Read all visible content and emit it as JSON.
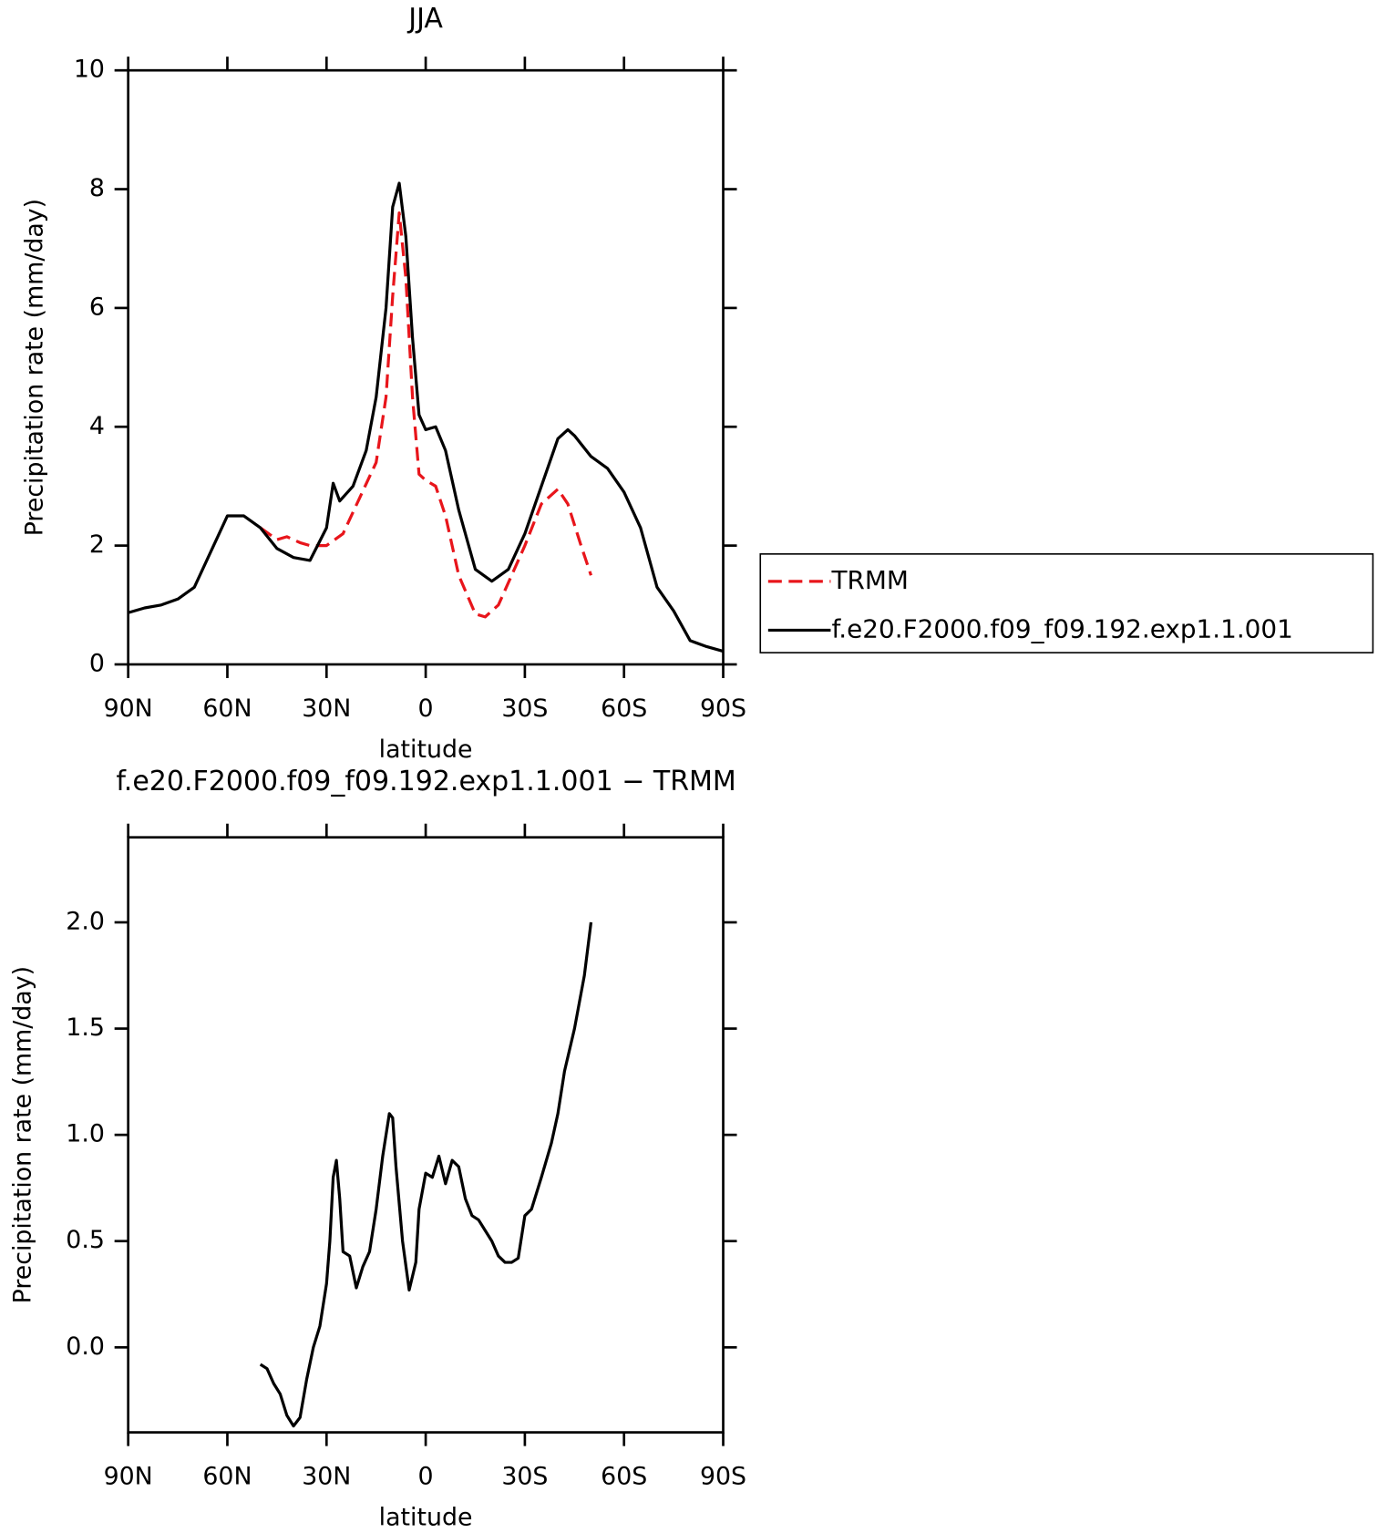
{
  "chart_data": [
    {
      "type": "line",
      "title": "JJA",
      "xlabel": "latitude",
      "ylabel": "Precipitation rate (mm/day)",
      "xlim": [
        90,
        -90
      ],
      "xticks": [
        {
          "value": 90,
          "label": "90N"
        },
        {
          "value": 60,
          "label": "60N"
        },
        {
          "value": 30,
          "label": "30N"
        },
        0,
        {
          "value": -30,
          "label": "30S"
        },
        {
          "value": -60,
          "label": "60S"
        },
        {
          "value": -90,
          "label": "90S"
        }
      ],
      "ylim": [
        0,
        10
      ],
      "yticks": [
        0,
        2,
        4,
        6,
        8,
        10
      ],
      "legend": "right",
      "series": [
        {
          "name": "TRMM",
          "color": "#e8151b",
          "dash": true,
          "x": [
            50,
            45,
            42,
            38,
            35,
            30,
            25,
            20,
            15,
            12,
            10,
            8,
            6,
            4,
            2,
            0,
            -3,
            -6,
            -10,
            -15,
            -18,
            -22,
            -26,
            -30,
            -35,
            -40,
            -43,
            -47,
            -50
          ],
          "values": [
            2.3,
            2.1,
            2.15,
            2.05,
            2.0,
            2.0,
            2.2,
            2.8,
            3.4,
            4.5,
            6.2,
            7.6,
            6.5,
            4.5,
            3.2,
            3.1,
            3.0,
            2.5,
            1.5,
            0.85,
            0.8,
            1.0,
            1.5,
            2.0,
            2.7,
            2.95,
            2.7,
            2.0,
            1.5
          ]
        },
        {
          "name": "f.e20.F2000.f09_f09.192.exp1.1.001",
          "color": "#000000",
          "dash": false,
          "x": [
            90,
            85,
            80,
            75,
            70,
            65,
            60,
            55,
            50,
            45,
            40,
            35,
            30,
            28,
            26,
            22,
            18,
            15,
            12,
            10,
            8,
            6,
            4,
            2,
            0,
            -3,
            -6,
            -10,
            -15,
            -20,
            -25,
            -30,
            -35,
            -40,
            -43,
            -45,
            -50,
            -55,
            -60,
            -65,
            -70,
            -75,
            -80,
            -85,
            -90
          ],
          "values": [
            0.87,
            0.95,
            1.0,
            1.1,
            1.3,
            1.9,
            2.5,
            2.5,
            2.3,
            1.95,
            1.8,
            1.75,
            2.3,
            3.05,
            2.75,
            3.0,
            3.6,
            4.5,
            6.0,
            7.7,
            8.1,
            7.2,
            5.5,
            4.2,
            3.95,
            4.0,
            3.6,
            2.6,
            1.6,
            1.4,
            1.6,
            2.2,
            3.0,
            3.8,
            3.95,
            3.85,
            3.5,
            3.3,
            2.9,
            2.3,
            1.3,
            0.9,
            0.4,
            0.3,
            0.22
          ]
        }
      ]
    },
    {
      "type": "line",
      "title": "f.e20.F2000.f09_f09.192.exp1.1.001 − TRMM",
      "xlabel": "latitude",
      "ylabel": "Precipitation rate (mm/day)",
      "xlim": [
        90,
        -90
      ],
      "xticks": [
        {
          "value": 90,
          "label": "90N"
        },
        {
          "value": 60,
          "label": "60N"
        },
        {
          "value": 30,
          "label": "30N"
        },
        0,
        {
          "value": -30,
          "label": "30S"
        },
        {
          "value": -60,
          "label": "60S"
        },
        {
          "value": -90,
          "label": "90S"
        }
      ],
      "ylim": [
        -0.4,
        2.4
      ],
      "yticks": [
        {
          "value": 0,
          "label": "0.0"
        },
        0.5,
        {
          "value": 1,
          "label": "1.0"
        },
        1.5,
        {
          "value": 2,
          "label": "2.0"
        }
      ],
      "color": "#000000",
      "x": [
        50,
        48,
        46,
        44,
        42,
        40,
        38,
        36,
        34,
        32,
        30,
        29,
        28,
        27,
        26,
        25,
        23,
        21,
        19,
        17,
        15,
        13,
        11,
        10,
        9,
        7,
        5,
        3,
        2,
        0,
        -2,
        -4,
        -6,
        -8,
        -10,
        -12,
        -14,
        -16,
        -18,
        -20,
        -22,
        -24,
        -26,
        -28,
        -30,
        -32,
        -35,
        -38,
        -40,
        -42,
        -45,
        -48,
        -50
      ],
      "values": [
        -0.08,
        -0.1,
        -0.17,
        -0.22,
        -0.32,
        -0.37,
        -0.33,
        -0.15,
        0.0,
        0.1,
        0.3,
        0.5,
        0.8,
        0.88,
        0.7,
        0.45,
        0.43,
        0.28,
        0.38,
        0.45,
        0.65,
        0.9,
        1.1,
        1.08,
        0.85,
        0.5,
        0.27,
        0.4,
        0.65,
        0.82,
        0.8,
        0.9,
        0.77,
        0.88,
        0.85,
        0.7,
        0.62,
        0.6,
        0.55,
        0.5,
        0.43,
        0.4,
        0.4,
        0.42,
        0.62,
        0.65,
        0.8,
        0.96,
        1.1,
        1.3,
        1.5,
        1.75,
        2.0
      ]
    }
  ]
}
